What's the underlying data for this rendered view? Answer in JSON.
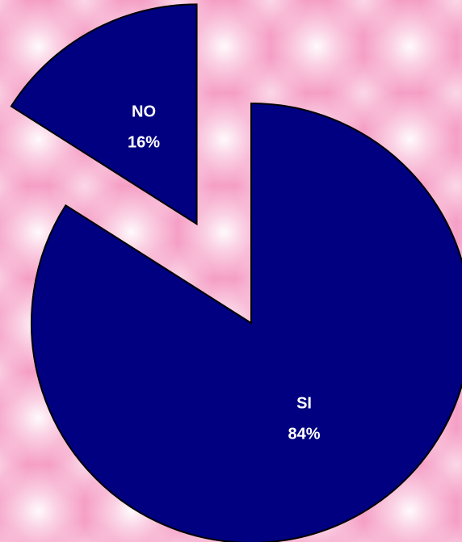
{
  "chart_data": {
    "type": "pie",
    "categories": [
      "SI",
      "NO"
    ],
    "values": [
      84,
      16
    ],
    "value_labels": [
      "84%",
      "16%"
    ],
    "color": "#000080"
  }
}
